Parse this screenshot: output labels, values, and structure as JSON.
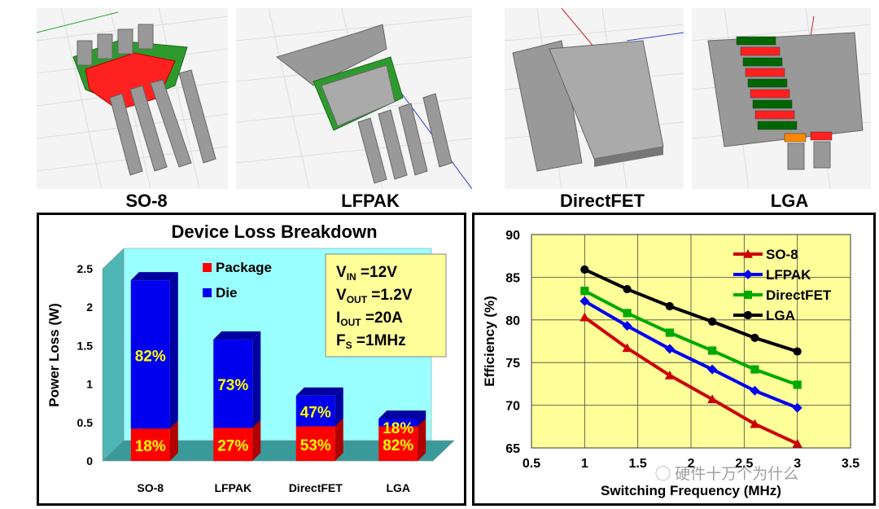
{
  "packages": [
    {
      "name": "SO-8"
    },
    {
      "name": "LFPAK"
    },
    {
      "name": "DirectFET"
    },
    {
      "name": "LGA"
    }
  ],
  "colors": {
    "package": "#ff0000",
    "die": "#0000ee",
    "plot_bg": "#ffff99",
    "breakdown_bg": "#99ffff",
    "info_bg": "#ffff99"
  },
  "watermark": "硬件十万个为什么",
  "chart_data": [
    {
      "type": "bar",
      "title": "Device Loss Breakdown",
      "xlabel": "",
      "ylabel": "Power Loss (W)",
      "ylim": [
        0,
        2.5
      ],
      "yticks": [
        "0",
        "0.5",
        "1",
        "1.5",
        "2",
        "2.5"
      ],
      "categories": [
        "SO-8",
        "LFPAK",
        "DirectFET",
        "LGA"
      ],
      "series": [
        {
          "name": "Package",
          "values": [
            0.42,
            0.43,
            0.45,
            0.45
          ],
          "percent_labels": [
            "18%",
            "27%",
            "53%",
            "82%"
          ]
        },
        {
          "name": "Die",
          "values": [
            1.93,
            1.15,
            0.4,
            0.1
          ],
          "percent_labels": [
            "82%",
            "73%",
            "47%",
            "18%"
          ]
        }
      ],
      "conditions": {
        "vin": {
          "main": "V",
          "sub": "IN",
          "value": " =12V"
        },
        "vout": {
          "main": "V",
          "sub": "OUT",
          "value": " =1.2V"
        },
        "iout": {
          "main": "I",
          "sub": "OUT",
          "value": " =20A"
        },
        "fs": {
          "main": "F",
          "sub": "S",
          "value": " =1MHz"
        }
      }
    },
    {
      "type": "line",
      "xlabel": "Switching Frequency (MHz)",
      "ylabel": "Efficiency (%)",
      "xlim": [
        0.5,
        3.5
      ],
      "ylim": [
        65,
        90
      ],
      "xticks": [
        "0.5",
        "1",
        "1.5",
        "2",
        "2.5",
        "3",
        "3.5"
      ],
      "yticks": [
        "65",
        "70",
        "75",
        "80",
        "85",
        "90"
      ],
      "x": [
        1,
        1.4,
        1.8,
        2.2,
        2.6,
        3
      ],
      "series": [
        {
          "name": "SO-8",
          "color": "#cc0000",
          "marker": "triangle",
          "values": [
            80.3,
            76.7,
            73.5,
            70.7,
            67.8,
            65.5
          ]
        },
        {
          "name": "LFPAK",
          "color": "#0000ee",
          "marker": "diamond",
          "values": [
            82.2,
            79.3,
            76.6,
            74.2,
            71.7,
            69.7
          ]
        },
        {
          "name": "DirectFET",
          "color": "#00aa00",
          "marker": "square",
          "values": [
            83.4,
            80.8,
            78.5,
            76.4,
            74.2,
            72.4
          ]
        },
        {
          "name": "LGA",
          "color": "#000000",
          "marker": "circle",
          "values": [
            85.9,
            83.6,
            81.6,
            79.8,
            77.9,
            76.3
          ]
        }
      ]
    }
  ]
}
